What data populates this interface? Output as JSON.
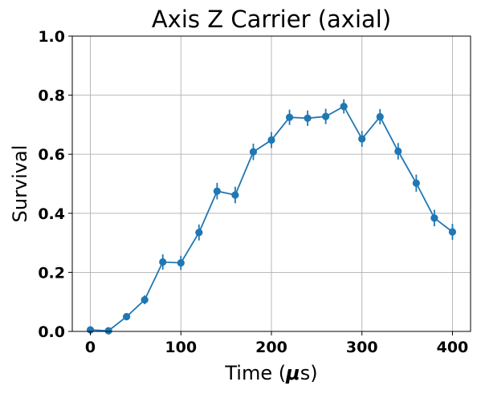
{
  "chart_data": {
    "type": "line",
    "title": "Axis Z Carrier (axial)",
    "xlabel_prefix": "Time (",
    "xlabel_mu": "μ",
    "xlabel_suffix": "s)",
    "ylabel": "Survival",
    "xlim": [
      -20,
      420
    ],
    "ylim": [
      0.0,
      1.0
    ],
    "x_ticks": [
      0,
      100,
      200,
      300,
      400
    ],
    "x_tick_labels": [
      "0",
      "100",
      "200",
      "300",
      "400"
    ],
    "y_ticks": [
      0.0,
      0.2,
      0.4,
      0.6,
      0.8,
      1.0
    ],
    "y_tick_labels": [
      "0.0",
      "0.2",
      "0.4",
      "0.6",
      "0.8",
      "1.0"
    ],
    "grid": true,
    "series": [
      {
        "color": "#1f77b4",
        "x": [
          0,
          20,
          40,
          60,
          80,
          100,
          120,
          140,
          160,
          180,
          200,
          220,
          240,
          260,
          280,
          300,
          320,
          340,
          360,
          380,
          400
        ],
        "y": [
          0.005,
          0.002,
          0.05,
          0.107,
          0.235,
          0.232,
          0.335,
          0.475,
          0.462,
          0.608,
          0.648,
          0.725,
          0.722,
          0.728,
          0.762,
          0.652,
          0.727,
          0.61,
          0.502,
          0.384,
          0.337
        ],
        "yerr": [
          0.004,
          0.003,
          0.01,
          0.015,
          0.026,
          0.024,
          0.027,
          0.028,
          0.028,
          0.028,
          0.027,
          0.026,
          0.026,
          0.026,
          0.024,
          0.027,
          0.026,
          0.028,
          0.029,
          0.028,
          0.027
        ]
      }
    ]
  }
}
